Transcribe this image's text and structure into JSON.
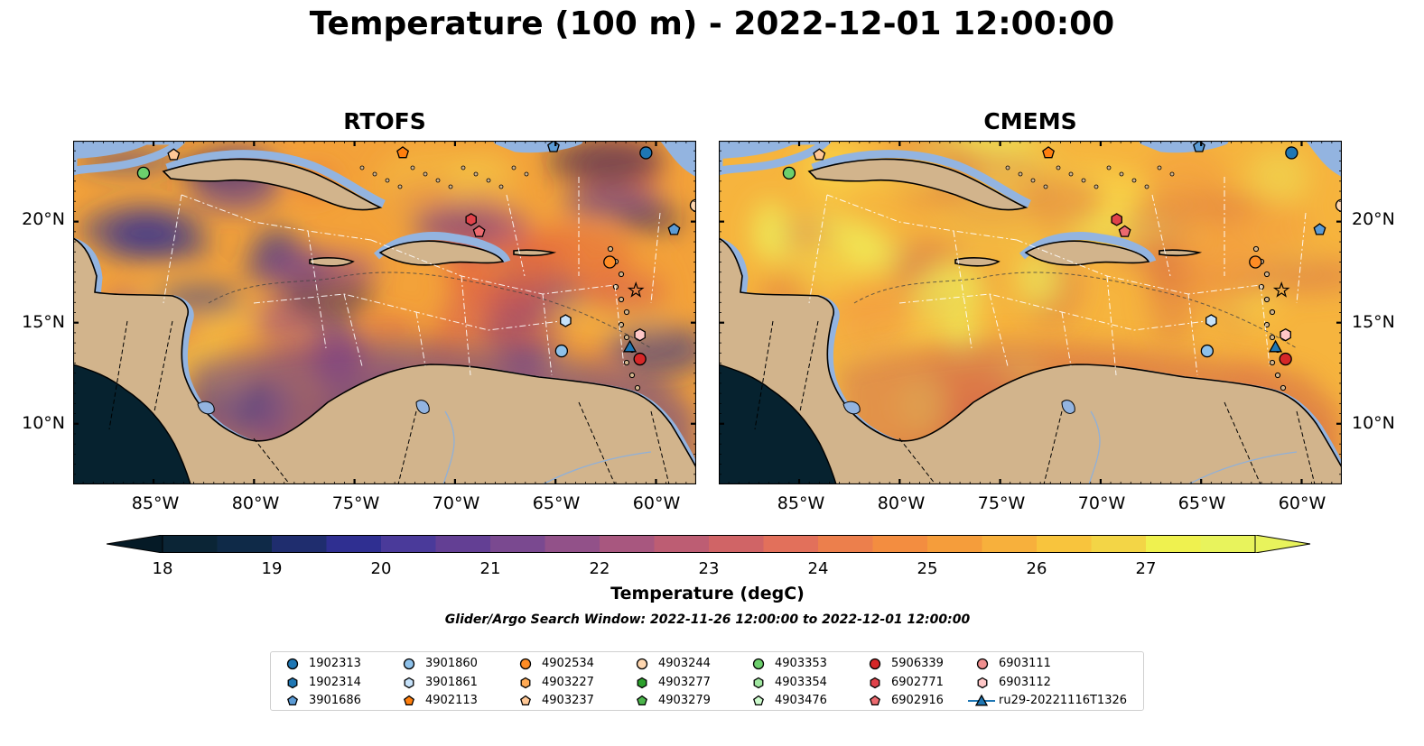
{
  "title": "Temperature (100 m) - 2022-12-01 12:00:00",
  "panels": [
    {
      "title": "RTOFS",
      "palette": {
        "base": "#f3a23a",
        "blobs": [
          [
            "#e56a3c",
            0.6
          ],
          [
            "#d55a4f",
            0.55
          ],
          [
            "#9c4f85",
            0.6
          ],
          [
            "#5d3c8f",
            0.65
          ],
          [
            "#2a2f8e",
            0.55
          ],
          [
            "#1a1a55",
            0.5
          ],
          [
            "#f6c845",
            0.4
          ],
          [
            "#f08f3a",
            0.5
          ]
        ],
        "south": "#5d3c8f"
      }
    },
    {
      "title": "CMEMS",
      "palette": {
        "base": "#f6b43e",
        "blobs": [
          [
            "#eef05a",
            0.7
          ],
          [
            "#f9d84a",
            0.6
          ],
          [
            "#f39a3f",
            0.55
          ],
          [
            "#e07a40",
            0.5
          ],
          [
            "#d56a4b",
            0.45
          ],
          [
            "#f2c044",
            0.6
          ]
        ],
        "south": "#d1654c"
      }
    }
  ],
  "x_ticks": [
    "85°W",
    "80°W",
    "75°W",
    "70°W",
    "65°W",
    "60°W"
  ],
  "y_ticks": [
    "20°N",
    "15°N",
    "10°N"
  ],
  "colorbar": {
    "label": "Temperature (degC)",
    "ticks": [
      "18",
      "19",
      "20",
      "21",
      "22",
      "23",
      "24",
      "25",
      "26",
      "27"
    ],
    "colors": [
      "#0b2536",
      "#0f2a48",
      "#1f2d6e",
      "#2f2f91",
      "#4a3a9a",
      "#633f94",
      "#7a4990",
      "#925189",
      "#a8577f",
      "#bd5d73",
      "#d06466",
      "#e2705b",
      "#ec7f4c",
      "#f38d40",
      "#f59d3b",
      "#f7b03c",
      "#f8c43d",
      "#f3d546",
      "#eff14f",
      "#e8f35c"
    ],
    "under_color": "#051a26",
    "over_color": "#e8f35c"
  },
  "search_window": "Glider/Argo Search Window: 2022-11-26 12:00:00 to 2022-12-01 12:00:00",
  "legend": [
    {
      "label": "1902313",
      "marker": "circle",
      "color": "#1f77b4"
    },
    {
      "label": "1902314",
      "marker": "hexagon",
      "color": "#1f77b4"
    },
    {
      "label": "3901686",
      "marker": "pentagon",
      "color": "#5b9bd5"
    },
    {
      "label": "3901860",
      "marker": "circle",
      "color": "#8ec1ea"
    },
    {
      "label": "3901861",
      "marker": "hexagon",
      "color": "#c6e2fa"
    },
    {
      "label": "4902113",
      "marker": "pentagon",
      "color": "#ff7f0e"
    },
    {
      "label": "4902534",
      "marker": "circle",
      "color": "#ff8c24"
    },
    {
      "label": "4903227",
      "marker": "hexagon",
      "color": "#ffaa55"
    },
    {
      "label": "4903237",
      "marker": "pentagon",
      "color": "#ffc896"
    },
    {
      "label": "4903244",
      "marker": "circle",
      "color": "#ffd7b0"
    },
    {
      "label": "4903277",
      "marker": "hexagon",
      "color": "#2ca02c"
    },
    {
      "label": "4903279",
      "marker": "pentagon",
      "color": "#4cb54c"
    },
    {
      "label": "4903353",
      "marker": "circle",
      "color": "#6ccf6c"
    },
    {
      "label": "4903354",
      "marker": "hexagon",
      "color": "#a0e7a0"
    },
    {
      "label": "4903476",
      "marker": "pentagon",
      "color": "#ccfacc"
    },
    {
      "label": "5906339",
      "marker": "circle",
      "color": "#d62728"
    },
    {
      "label": "6902771",
      "marker": "hexagon",
      "color": "#e0424a"
    },
    {
      "label": "6902916",
      "marker": "pentagon",
      "color": "#ec6a6f"
    },
    {
      "label": "6903111",
      "marker": "circle",
      "color": "#f08f8f"
    },
    {
      "label": "6903112",
      "marker": "hexagon",
      "color": "#ffc7c7"
    },
    {
      "label": "ru29-20221116T1326",
      "marker": "triangle-line",
      "color": "#1f77b4"
    }
  ],
  "map_colors": {
    "land": "#d2b48c",
    "shelf": "#93b4e0",
    "pacific": "#06222f",
    "coast": "#000000"
  },
  "map_extent": {
    "lon": [
      -89,
      -58
    ],
    "lat": [
      7,
      24
    ]
  },
  "markers": [
    {
      "label": "4903353",
      "lon": -85.5,
      "lat": 22.4
    },
    {
      "label": "4903237",
      "lon": -84.0,
      "lat": 23.3
    },
    {
      "label": "4902113",
      "lon": -72.6,
      "lat": 23.4
    },
    {
      "label": "3901686",
      "lon": -65.1,
      "lat": 23.7
    },
    {
      "label": "1902313",
      "lon": -60.5,
      "lat": 23.4
    },
    {
      "label": "4903244",
      "lon": -58.0,
      "lat": 20.8
    },
    {
      "label": "3901686",
      "lon": -59.1,
      "lat": 19.6
    },
    {
      "label": "6902771",
      "lon": -69.2,
      "lat": 20.1
    },
    {
      "label": "6902916",
      "lon": -68.8,
      "lat": 19.5
    },
    {
      "label": "4902534",
      "lon": -62.3,
      "lat": 18.0
    },
    {
      "label": "3901861",
      "lon": -64.5,
      "lat": 15.1
    },
    {
      "label": "3901860",
      "lon": -64.7,
      "lat": 13.6
    },
    {
      "label": "6903112",
      "lon": -60.8,
      "lat": 14.4
    },
    {
      "label": "ru29-20221116T1326",
      "lon": -61.3,
      "lat": 13.8
    },
    {
      "label": "5906339",
      "lon": -60.8,
      "lat": 13.2
    }
  ]
}
